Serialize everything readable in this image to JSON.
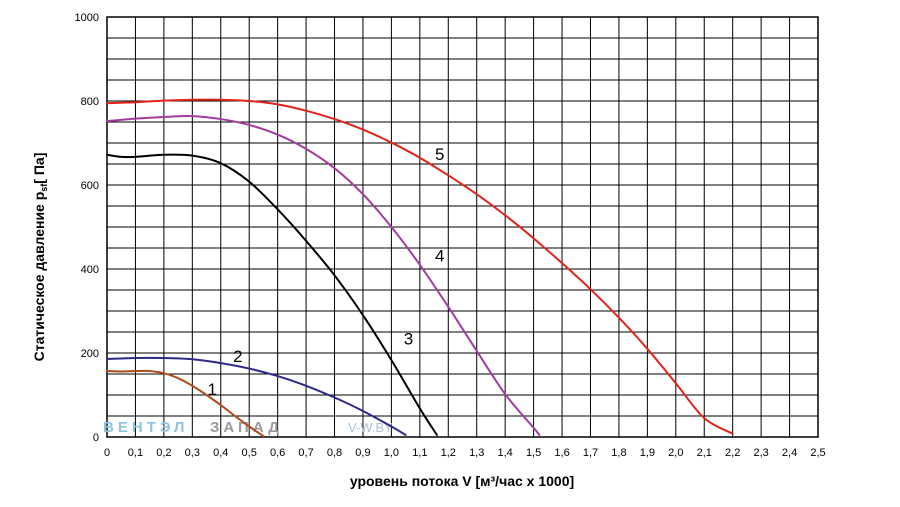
{
  "chart_data": {
    "type": "line",
    "title": "",
    "xlabel": "уровень потока  V [м³/час x 1000]",
    "ylabel": "Статическое давление  p",
    "ylabel_sub": "sf",
    "ylabel_unit": "[ Па]",
    "xlim": [
      0,
      2.5
    ],
    "ylim": [
      0,
      1000
    ],
    "x_ticks": [
      "0",
      "0,1",
      "0,2",
      "0,3",
      "0,4",
      "0,5",
      "0,6",
      "0,7",
      "0,8",
      "0,9",
      "1,0",
      "1,1",
      "1,2",
      "1,3",
      "1,4",
      "1,5",
      "1,6",
      "1,7",
      "1,8",
      "1,9",
      "2,0",
      "2,1",
      "2,2",
      "2,3",
      "2,4",
      "2,5"
    ],
    "y_ticks": [
      "0",
      "200",
      "400",
      "600",
      "800",
      "1000"
    ],
    "grid": true,
    "series": [
      {
        "name": "1",
        "color": "#b04a1a",
        "x": [
          0,
          0.05,
          0.1,
          0.15,
          0.2,
          0.25,
          0.3,
          0.35,
          0.4,
          0.45,
          0.5,
          0.55
        ],
        "y": [
          157,
          156,
          157,
          157,
          152,
          140,
          122,
          100,
          76,
          50,
          25,
          2
        ]
      },
      {
        "name": "2",
        "color": "#2e2a86",
        "x": [
          0,
          0.1,
          0.2,
          0.3,
          0.4,
          0.5,
          0.6,
          0.7,
          0.8,
          0.9,
          1.0,
          1.05
        ],
        "y": [
          186,
          188,
          188,
          185,
          176,
          163,
          145,
          122,
          94,
          62,
          25,
          5
        ]
      },
      {
        "name": "3",
        "color": "#000000",
        "x": [
          0,
          0.05,
          0.1,
          0.2,
          0.3,
          0.4,
          0.5,
          0.6,
          0.7,
          0.8,
          0.9,
          1.0,
          1.1,
          1.16
        ],
        "y": [
          672,
          667,
          667,
          672,
          670,
          652,
          608,
          542,
          467,
          385,
          290,
          183,
          68,
          5
        ]
      },
      {
        "name": "4",
        "color": "#a43c9e",
        "x": [
          0,
          0.1,
          0.2,
          0.3,
          0.4,
          0.5,
          0.6,
          0.7,
          0.8,
          0.9,
          1.0,
          1.1,
          1.2,
          1.3,
          1.4,
          1.5,
          1.52
        ],
        "y": [
          752,
          758,
          762,
          764,
          757,
          743,
          720,
          686,
          640,
          578,
          500,
          410,
          310,
          205,
          102,
          22,
          5
        ]
      },
      {
        "name": "5",
        "color": "#e0241b",
        "x": [
          0,
          0.1,
          0.2,
          0.3,
          0.4,
          0.5,
          0.6,
          0.7,
          0.8,
          0.9,
          1.0,
          1.1,
          1.2,
          1.3,
          1.4,
          1.5,
          1.6,
          1.7,
          1.8,
          1.9,
          2.0,
          2.1,
          2.2
        ],
        "y": [
          795,
          797,
          801,
          803,
          803,
          800,
          792,
          777,
          757,
          732,
          701,
          665,
          623,
          578,
          528,
          473,
          414,
          352,
          284,
          210,
          128,
          45,
          8
        ]
      }
    ],
    "annotations": [
      {
        "text": "1",
        "x": 0.37,
        "y": 100
      },
      {
        "text": "2",
        "x": 0.46,
        "y": 178
      },
      {
        "text": "3",
        "x": 1.06,
        "y": 220
      },
      {
        "text": "4",
        "x": 1.17,
        "y": 418
      },
      {
        "text": "5",
        "x": 1.17,
        "y": 660
      }
    ]
  },
  "watermark": {
    "brand_part1": "ВЕНТЭЛ",
    "brand_part2": "ЗАПАД",
    "site": "V-W.BY"
  }
}
